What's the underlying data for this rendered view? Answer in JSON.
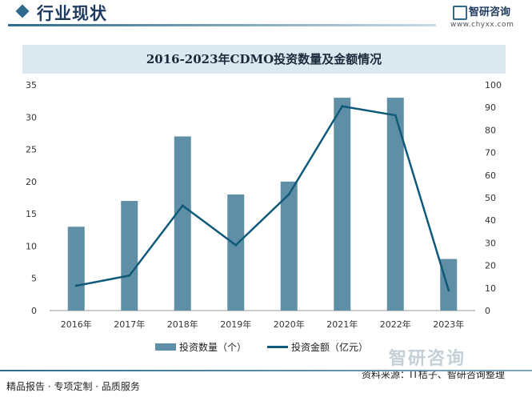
{
  "header": {
    "section_title": "行业现状",
    "logo_text": "智研咨询",
    "site_url": "www.chyxx.com"
  },
  "watermark": "智研咨询",
  "footer": {
    "left": "精品报告 · 专项定制 · 品质服务",
    "source": "资料来源：IT桔子、智研咨询整理"
  },
  "colors": {
    "bar": "#5f8fa6",
    "line": "#0f5a78",
    "title_band": "#dbe8f0"
  },
  "chart_data": {
    "type": "bar",
    "title": "2016-2023年CDMO投资数量及金额情况",
    "categories": [
      "2016年",
      "2017年",
      "2018年",
      "2019年",
      "2020年",
      "2021年",
      "2022年",
      "2023年"
    ],
    "series": [
      {
        "name": "投资数量（个）",
        "type": "bar",
        "axis": "left",
        "values": [
          13,
          17,
          27,
          18,
          20,
          33,
          33,
          8
        ]
      },
      {
        "name": "投资金额（亿元）",
        "type": "line",
        "axis": "right",
        "values": [
          11,
          15.5,
          46.5,
          29,
          51.5,
          90.5,
          86.5,
          9
        ]
      }
    ],
    "y_left": {
      "min": 0,
      "max": 35,
      "ticks": [
        0,
        5,
        10,
        15,
        20,
        25,
        30,
        35
      ]
    },
    "y_right": {
      "min": 0,
      "max": 100,
      "ticks": [
        0,
        10,
        20,
        30,
        40,
        50,
        60,
        70,
        80,
        90,
        100
      ]
    },
    "grid": false,
    "legend_position": "bottom"
  }
}
